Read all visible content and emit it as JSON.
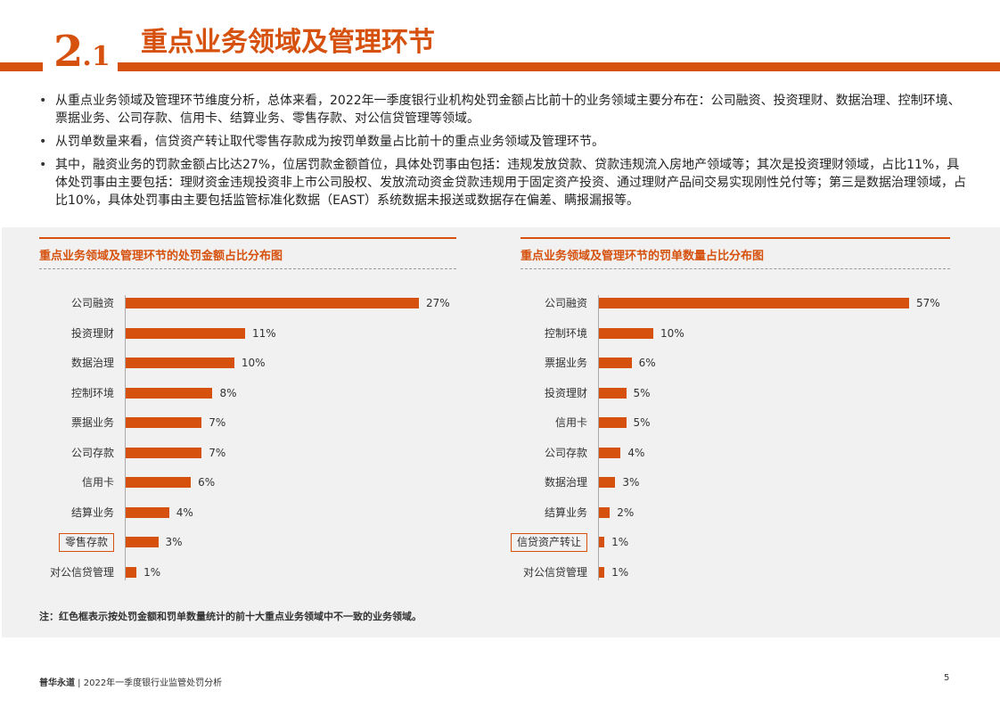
{
  "header": {
    "section_number_main": "2",
    "section_number_sub": ".1",
    "title": "重点业务领域及管理环节"
  },
  "bullets": [
    "从重点业务领域及管理环节维度分析，总体来看，2022年一季度银行业机构处罚金额占比前十的业务领域主要分布在：公司融资、投资理财、数据治理、控制环境、票据业务、公司存款、信用卡、结算业务、零售存款、对公信贷管理等领域。",
    "从罚单数量来看，信贷资产转让取代零售存款成为按罚单数量占比前十的重点业务领域及管理环节。",
    "其中，融资业务的罚款金额占比达27%，位居罚款金额首位，具体处罚事由包括：违规发放贷款、贷款违规流入房地产领域等；其次是投资理财领域，占比11%，具体处罚事由主要包括：理财资金违规投资非上市公司股权、发放流动资金贷款违规用于固定资产投资、通过理财产品间交易实现刚性兑付等；第三是数据治理领域，占比10%，具体处罚事由主要包括监管标准化数据（EAST）系统数据未报送或数据存在偏差、瞒报漏报等。"
  ],
  "chart_data": [
    {
      "type": "bar",
      "orientation": "horizontal",
      "title": "重点业务领域及管理环节的处罚金额占比分布图",
      "categories": [
        "公司融资",
        "投资理财",
        "数据治理",
        "控制环境",
        "票据业务",
        "公司存款",
        "信用卡",
        "结算业务",
        "零售存款",
        "对公信贷管理"
      ],
      "values": [
        27,
        11,
        10,
        8,
        7,
        7,
        6,
        4,
        3,
        1
      ],
      "labels": [
        "27%",
        "11%",
        "10%",
        "8%",
        "7%",
        "7%",
        "6%",
        "4%",
        "3%",
        "1%"
      ],
      "highlighted": [
        "零售存款"
      ],
      "unit": "%",
      "bar_color": "#d6510d",
      "highlight_color": "#d6510d",
      "xlim": [
        0,
        27
      ]
    },
    {
      "type": "bar",
      "orientation": "horizontal",
      "title": "重点业务领域及管理环节的罚单数量占比分布图",
      "categories": [
        "公司融资",
        "控制环境",
        "票据业务",
        "投资理财",
        "信用卡",
        "公司存款",
        "数据治理",
        "结算业务",
        "信贷资产转让",
        "对公信贷管理"
      ],
      "values": [
        57,
        10,
        6,
        5,
        5,
        4,
        3,
        2,
        1,
        1
      ],
      "labels": [
        "57%",
        "10%",
        "6%",
        "5%",
        "5%",
        "4%",
        "3%",
        "2%",
        "1%",
        "1%"
      ],
      "highlighted": [
        "信贷资产转让"
      ],
      "unit": "%",
      "bar_color": "#d6510d",
      "highlight_color": "#d6510d",
      "xlim": [
        0,
        57
      ]
    }
  ],
  "note": "注：红色框表示按处罚金额和罚单数量统计的前十大重点业务领域中不一致的业务领域。",
  "footer": {
    "brand": "普华永道",
    "separator": " | ",
    "doc_title": "2022年一季度银行业监管处罚分析",
    "page_number": "5"
  },
  "colors": {
    "accent": "#d6510d",
    "panel_bg": "#f1f1f1"
  }
}
